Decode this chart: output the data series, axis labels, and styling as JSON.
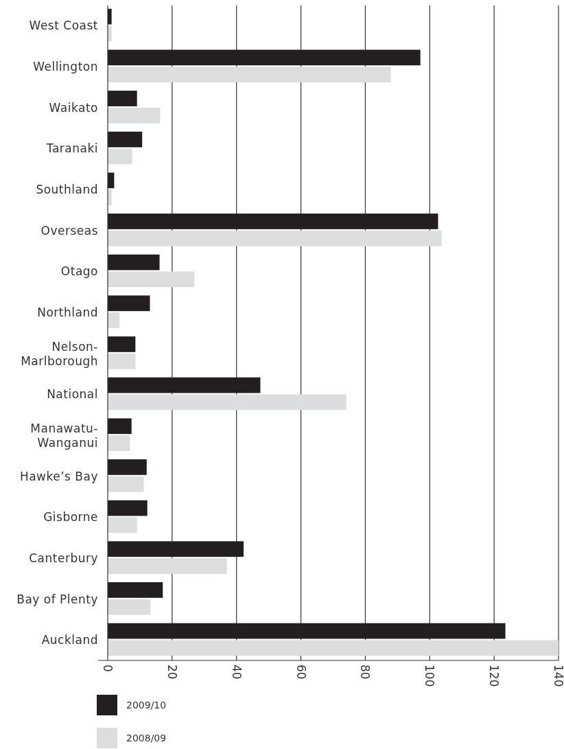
{
  "chart_data": {
    "type": "bar",
    "orientation": "horizontal",
    "categories": [
      "West Coast",
      "Wellington",
      "Waikato",
      "Taranaki",
      "Southland",
      "Overseas",
      "Otago",
      "Northland",
      "Nelson-Marlborough",
      "National",
      "Manawatu-Wanganui",
      "Hawke’s Bay",
      "Gisborne",
      "Canterbury",
      "Bay of Plenty",
      "Auckland"
    ],
    "series": [
      {
        "name": "2009/10",
        "color": "#231f20",
        "values": [
          1.2,
          97.1,
          9.1,
          10.7,
          2.0,
          102.6,
          16.1,
          13.1,
          8.6,
          47.4,
          7.4,
          12.1,
          12.3,
          42.2,
          17.1,
          123.5
        ]
      },
      {
        "name": "2008/09",
        "color": "#dcdddf",
        "values": [
          1.2,
          87.9,
          16.3,
          7.6,
          1.2,
          103.7,
          26.9,
          3.7,
          8.6,
          74.1,
          6.9,
          11.2,
          9.1,
          37.0,
          13.3,
          140
        ]
      }
    ],
    "xlim": [
      0,
      140
    ],
    "xticks": [
      0,
      20,
      40,
      60,
      80,
      100,
      120,
      140
    ],
    "grid": "x",
    "legend": "bottom"
  }
}
